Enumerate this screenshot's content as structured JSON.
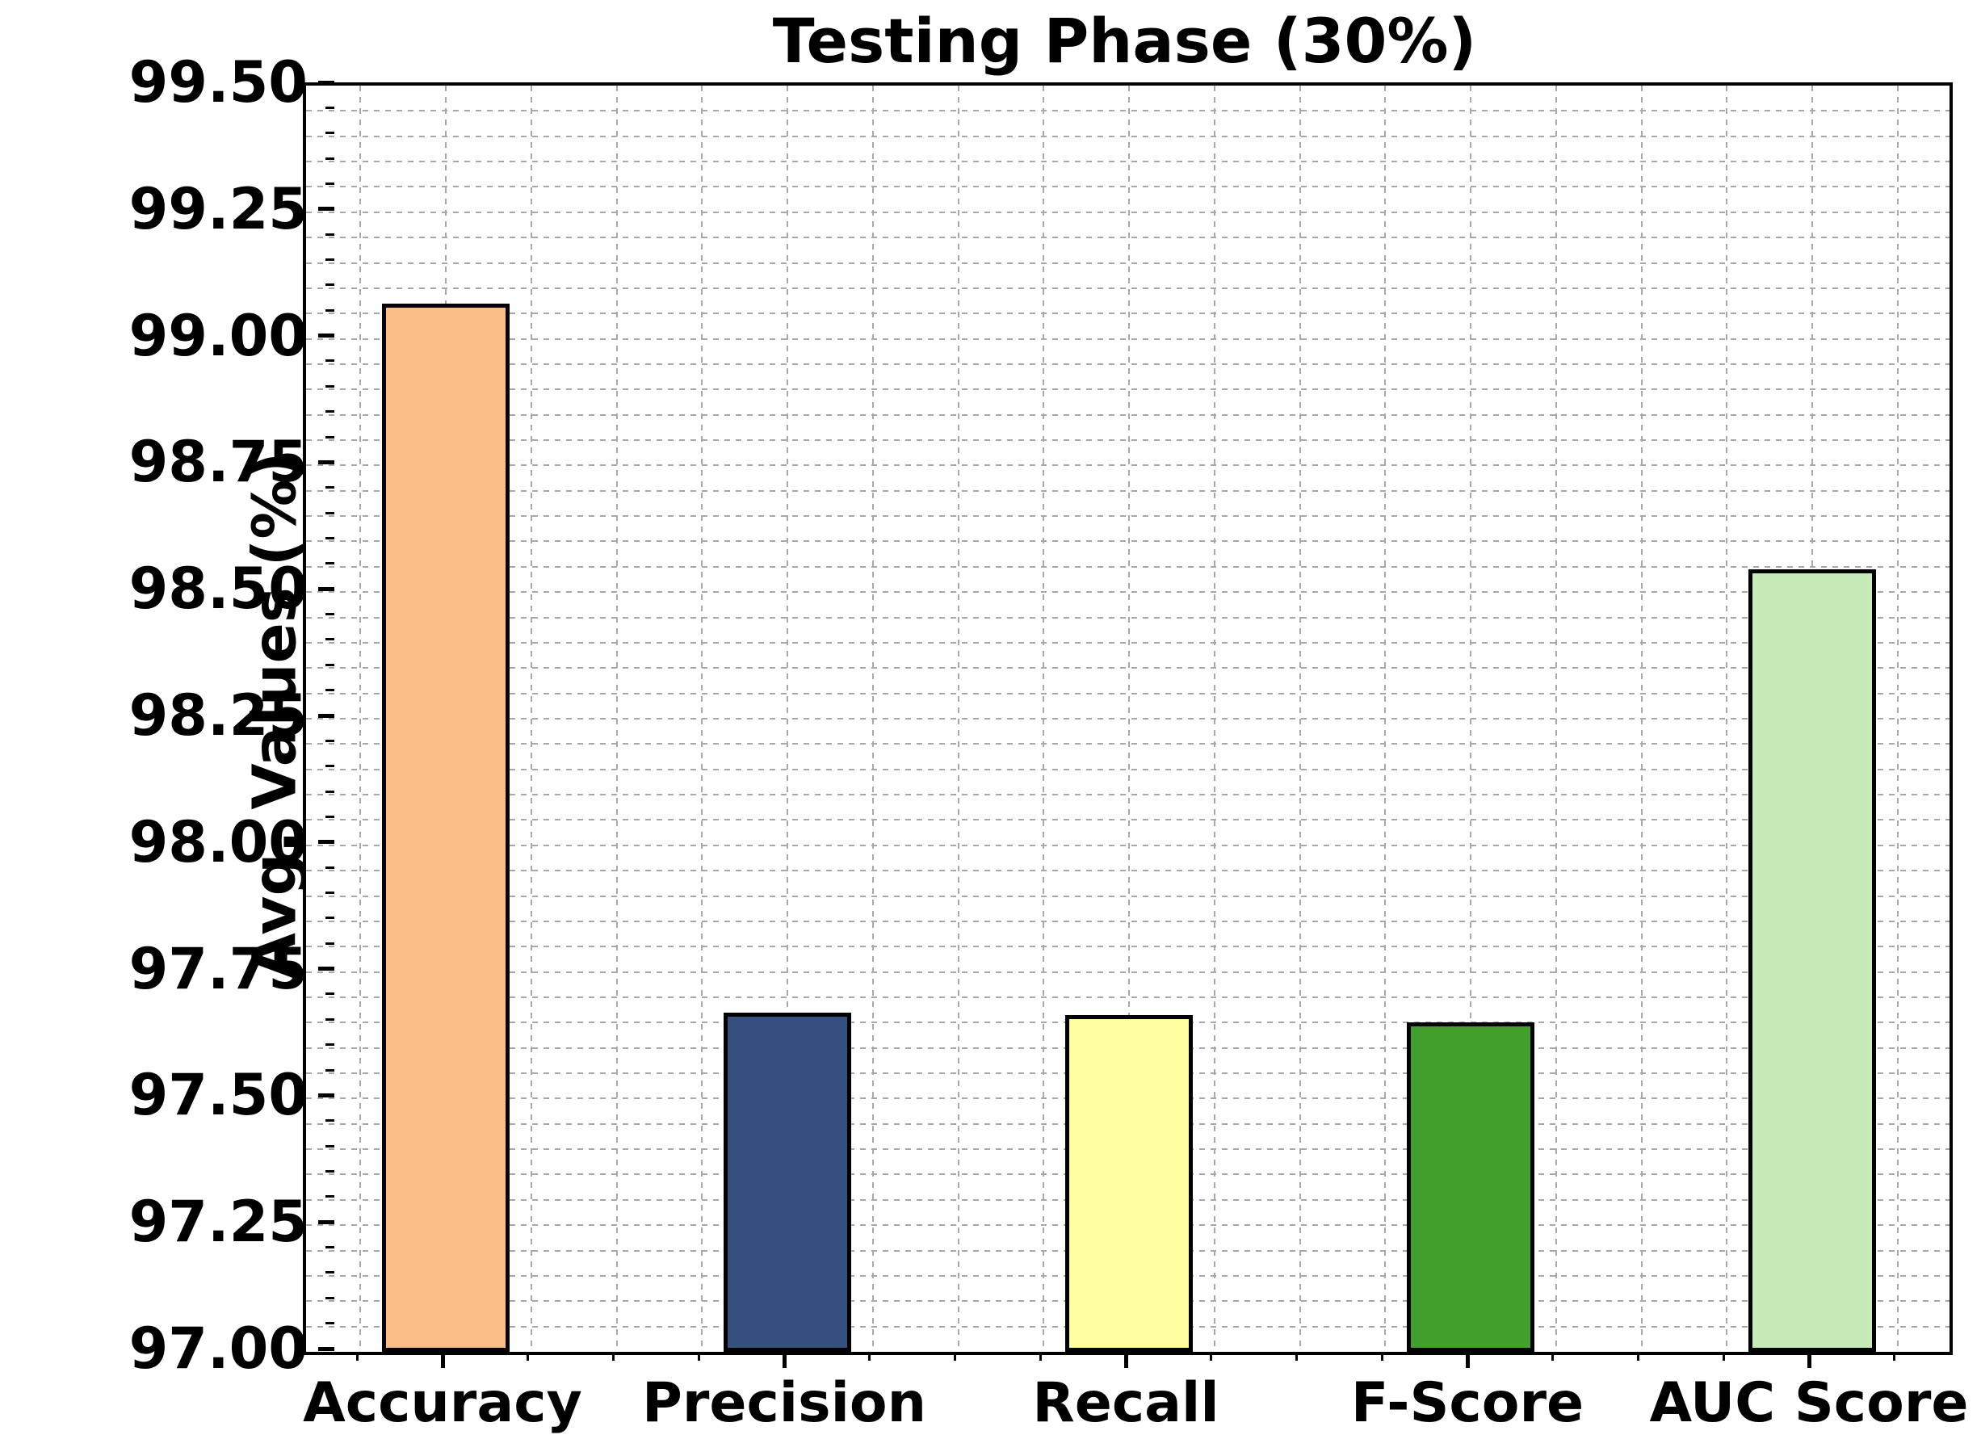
{
  "title": "Testing Phase (30%)",
  "chart_data": {
    "type": "bar",
    "title": "Testing Phase (30%)",
    "xlabel": "",
    "ylabel": "Avg. Values (%)",
    "categories": [
      "Accuracy",
      "Precision",
      "Recall",
      "F-Score",
      "AUC Score"
    ],
    "values": [
      99.07,
      97.67,
      97.665,
      97.65,
      98.545
    ],
    "bar_colors": [
      "#fbbe88",
      "#35507d",
      "#feff9e",
      "#44a02c",
      "#c6ebb8"
    ],
    "bar_edge_color": "#000000",
    "ylim": [
      97.0,
      99.5
    ],
    "y_major_step": 0.25,
    "y_minor_step": 0.05,
    "y_tick_format": "2dp",
    "grid": "both-dashed",
    "grid_color": "#a8a8a8",
    "legend": "none",
    "background_color": "#ffffff"
  }
}
